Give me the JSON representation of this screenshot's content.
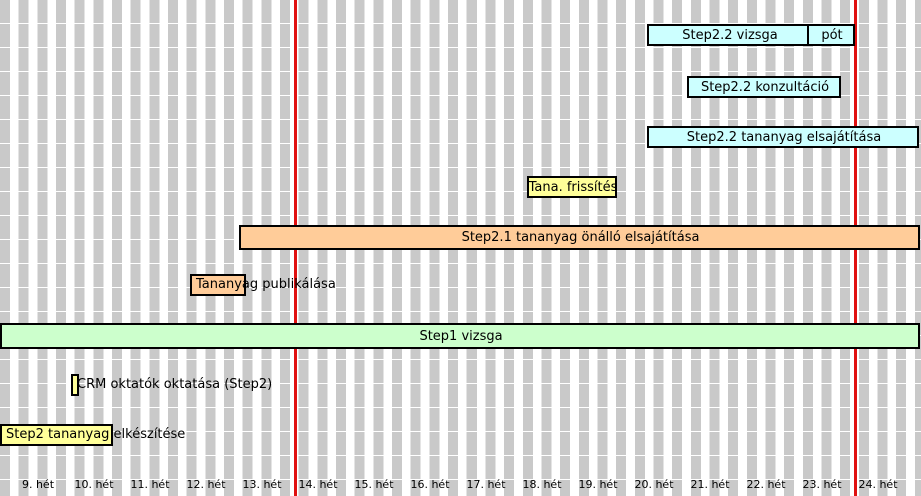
{
  "weeks": [
    "9. hét",
    "10. hét",
    "11. hét",
    "12. hét",
    "13. hét",
    "14. hét",
    "15. hét",
    "16. hét",
    "17. hét",
    "18. hét",
    "19. hét",
    "20. hét",
    "21. hét",
    "22. hét",
    "23. hét",
    "24. hét"
  ],
  "tasks": {
    "step2_vizsga": "Step2.2 vizsga",
    "step2_pot": "pót",
    "step2_konzultacio": "Step2.2 konzultáció",
    "step2_tananyag": "Step2.2 tananyag elsajátítása",
    "tana_frissites": "Tana. frissítés",
    "step2_1_tananyag": "Step2.1 tananyag önálló elsajátítása",
    "tananyag_publikalasa": "Tananyag publikálása",
    "step1_vizsga": "Step1 vizsga",
    "crm_oktatok": "CRM oktatók oktatása (Step2)",
    "step2_keszites": "Step2 tananyag elkészítése"
  },
  "colors": {
    "cyan": "#ccffff",
    "yellow": "#ffff99",
    "orange": "#ffcc99",
    "green": "#ccffcc",
    "milestone": "#e01010",
    "grid": "#c9c9c9"
  }
}
